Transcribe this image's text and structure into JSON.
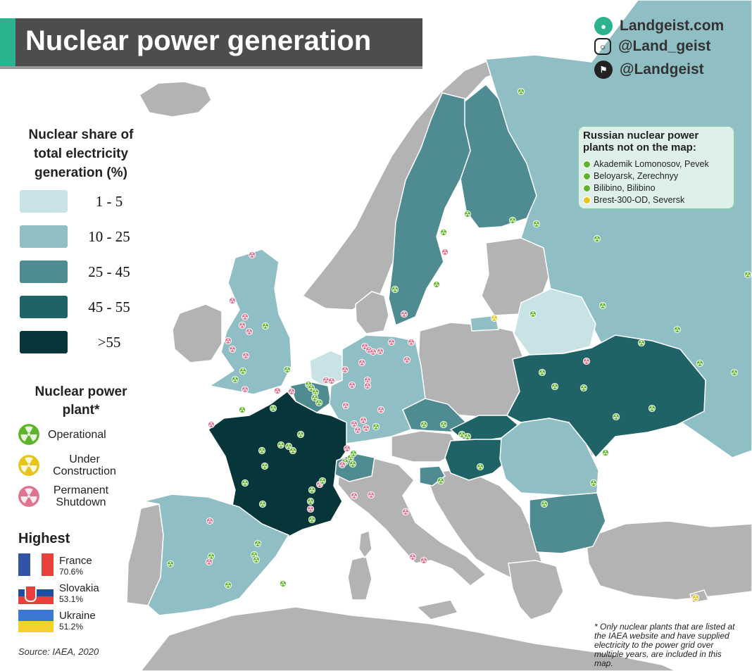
{
  "title": "Nuclear power generation",
  "brand": {
    "website": "Landgeist.com",
    "instagram": "@Land_geist",
    "twitter": "@Landgeist"
  },
  "legend": {
    "title_lines": [
      "Nuclear share of",
      "total electricity",
      "generation (%)"
    ],
    "bins": [
      {
        "label": "1  -  5",
        "color": "#c9e2e6"
      },
      {
        "label": "10 - 25",
        "color": "#8fbec4"
      },
      {
        "label": "25 - 45",
        "color": "#4e8c92"
      },
      {
        "label": "45 - 55",
        "color": "#1f6366"
      },
      {
        "label": ">55",
        "color": "#063639"
      }
    ]
  },
  "plant_legend": {
    "title_lines": [
      "Nuclear power",
      "plant*"
    ],
    "types": [
      {
        "lines": [
          "Operational"
        ],
        "color": "#5fb52a"
      },
      {
        "lines": [
          "Under",
          "Construction"
        ],
        "color": "#e6c419"
      },
      {
        "lines": [
          "Permanent",
          "Shutdown"
        ],
        "color": "#e0738f"
      }
    ]
  },
  "highest": {
    "title": "Highest",
    "entries": [
      {
        "country": "France",
        "value": "70.6%"
      },
      {
        "country": "Slovakia",
        "value": "53.1%"
      },
      {
        "country": "Ukraine",
        "value": "51.2%"
      }
    ]
  },
  "source": "Source: IAEA, 2020",
  "russia_box": {
    "title_lines": [
      "Russian nuclear power",
      "plants not on the map:"
    ],
    "items": [
      {
        "text": "Akademik Lomonosov, Pevek",
        "status": "operational"
      },
      {
        "text": "Beloyarsk, Zerechnyy",
        "status": "operational"
      },
      {
        "text": "Bilibino, Bilibino",
        "status": "operational"
      },
      {
        "text": "Brest-300-OD, Seversk",
        "status": "under_construction"
      }
    ]
  },
  "footnote": "* Only nuclear plants that are listed at the IAEA website and have supplied electricity to the power grid over multiple years, are included in this map.",
  "map": {
    "sea_color": "#ffffff",
    "no_data_color": "#b3b3b3",
    "countries": [
      {
        "name": "France",
        "bin": ">55"
      },
      {
        "name": "Slovakia",
        "bin": "45 - 55"
      },
      {
        "name": "Ukraine",
        "bin": "45 - 55"
      },
      {
        "name": "Hungary",
        "bin": "45 - 55"
      },
      {
        "name": "Belgium",
        "bin": "25 - 45"
      },
      {
        "name": "Switzerland",
        "bin": "25 - 45"
      },
      {
        "name": "Czechia",
        "bin": "25 - 45"
      },
      {
        "name": "Finland",
        "bin": "25 - 45"
      },
      {
        "name": "Sweden",
        "bin": "25 - 45"
      },
      {
        "name": "Slovenia",
        "bin": "25 - 45"
      },
      {
        "name": "Bulgaria",
        "bin": "25 - 45"
      },
      {
        "name": "Spain",
        "bin": "10 - 25"
      },
      {
        "name": "United Kingdom",
        "bin": "10 - 25"
      },
      {
        "name": "Germany",
        "bin": "10 - 25"
      },
      {
        "name": "Romania",
        "bin": "10 - 25"
      },
      {
        "name": "Russia",
        "bin": "10 - 25"
      },
      {
        "name": "Netherlands",
        "bin": "1  -  5"
      },
      {
        "name": "Belarus",
        "bin": "1  -  5"
      }
    ]
  }
}
